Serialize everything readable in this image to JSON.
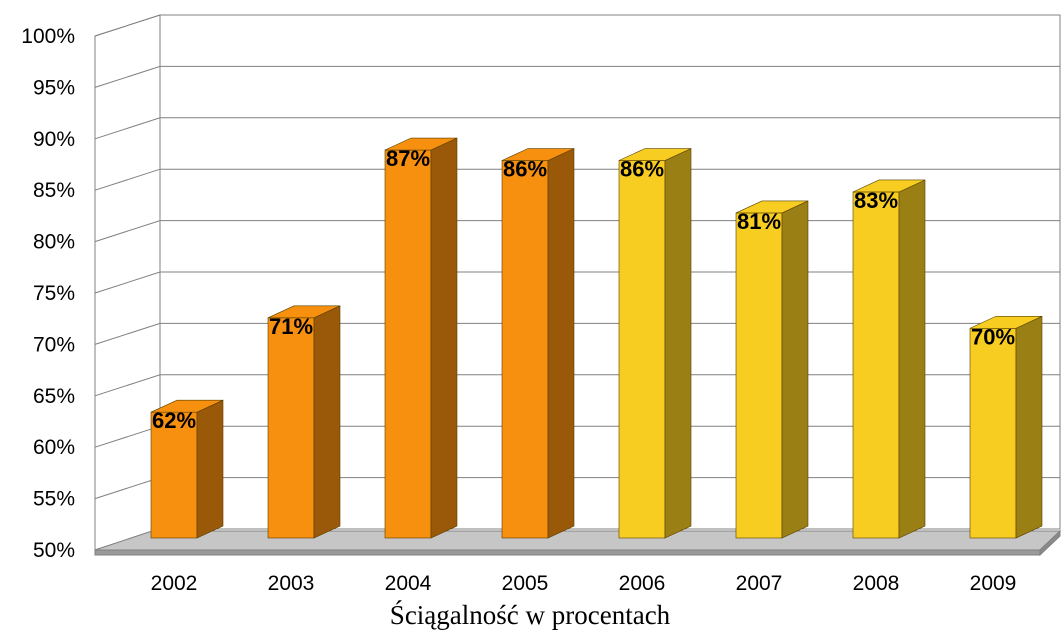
{
  "chart_data": {
    "type": "bar",
    "title": "",
    "xlabel": "Ściągalność w procentach",
    "ylabel": "",
    "ylim": [
      50,
      100
    ],
    "y_ticks": [
      "50%",
      "55%",
      "60%",
      "65%",
      "70%",
      "75%",
      "80%",
      "85%",
      "90%",
      "95%",
      "100%"
    ],
    "categories": [
      "2002",
      "2003",
      "2004",
      "2005",
      "2006",
      "2007",
      "2008",
      "2009"
    ],
    "values": [
      62,
      71,
      87,
      86,
      86,
      81,
      83,
      70
    ],
    "data_labels": [
      "62%",
      "71%",
      "87%",
      "86%",
      "86%",
      "81%",
      "83%",
      "70%"
    ],
    "bar_colors": [
      "#F7900E",
      "#F7900E",
      "#F7900E",
      "#F7900E",
      "#F8CD22",
      "#F8CD22",
      "#F8CD22",
      "#F8CD22"
    ],
    "grid": true,
    "legend": false,
    "style": "3d-column"
  }
}
